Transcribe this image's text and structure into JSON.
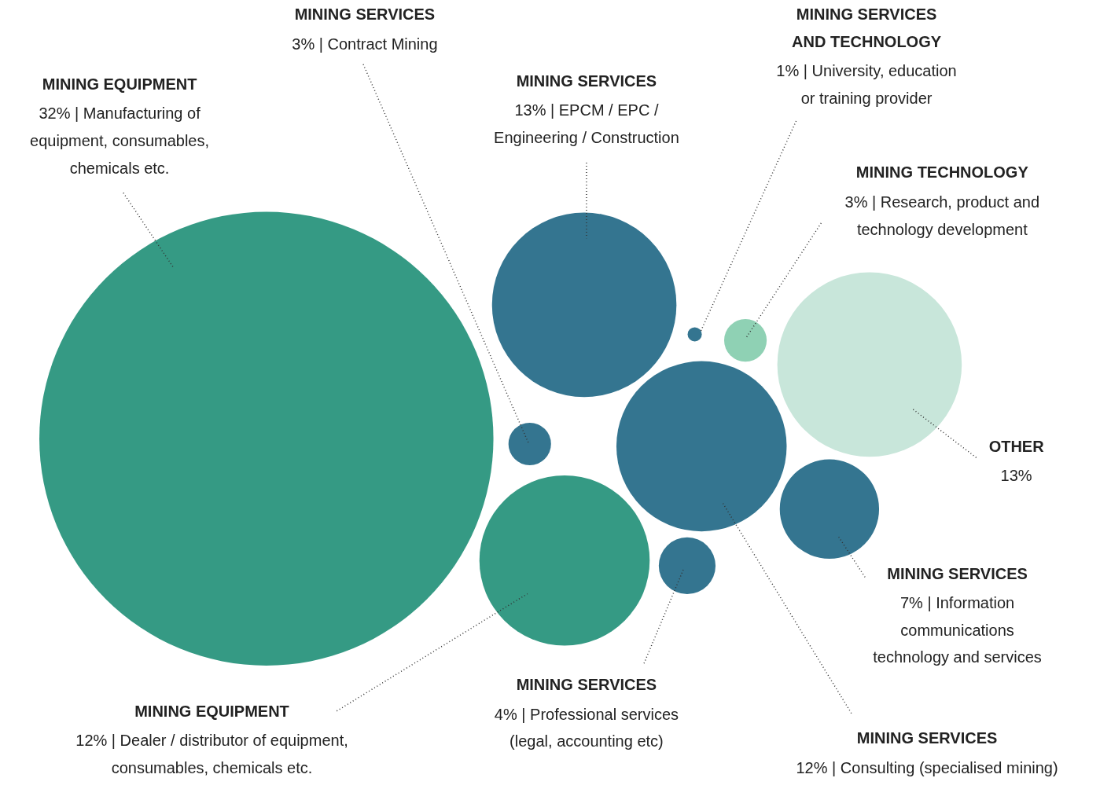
{
  "chart_data": {
    "type": "other",
    "categories": [
      "MINING EQUIPMENT",
      "MINING SERVICES",
      "MINING SERVICES",
      "MINING SERVICES\nAND TECHNOLOGY",
      "MINING TECHNOLOGY",
      "OTHER",
      "MINING SERVICES",
      "MINING SERVICES",
      "MINING SERVICES",
      "MINING EQUIPMENT"
    ],
    "values": [
      32,
      3,
      13,
      1,
      3,
      13,
      12,
      7,
      4,
      12
    ],
    "colors": [
      "#359a84",
      "#347590",
      "#347590",
      "#347590",
      "#8fd1b4",
      "#c8e6da",
      "#347590",
      "#347590",
      "#347590",
      "#359a84"
    ],
    "value_labels": [
      "32% | Manufacturing of\nequipment, consumables,\nchemicals etc.",
      "3% | Contract Mining",
      "13% | EPCM / EPC /\nEngineering / Construction",
      "1% | University, education\nor training provider",
      "3% | Research, product and\ntechnology development",
      "13%",
      "12% | Consulting (specialised mining)",
      "7% | Information\ncommunications\ntechnology and services",
      "4% | Professional services\n(legal, accounting etc)",
      "12% | Dealer / distributor of equipment,\nconsumables, chemicals etc."
    ]
  }
}
